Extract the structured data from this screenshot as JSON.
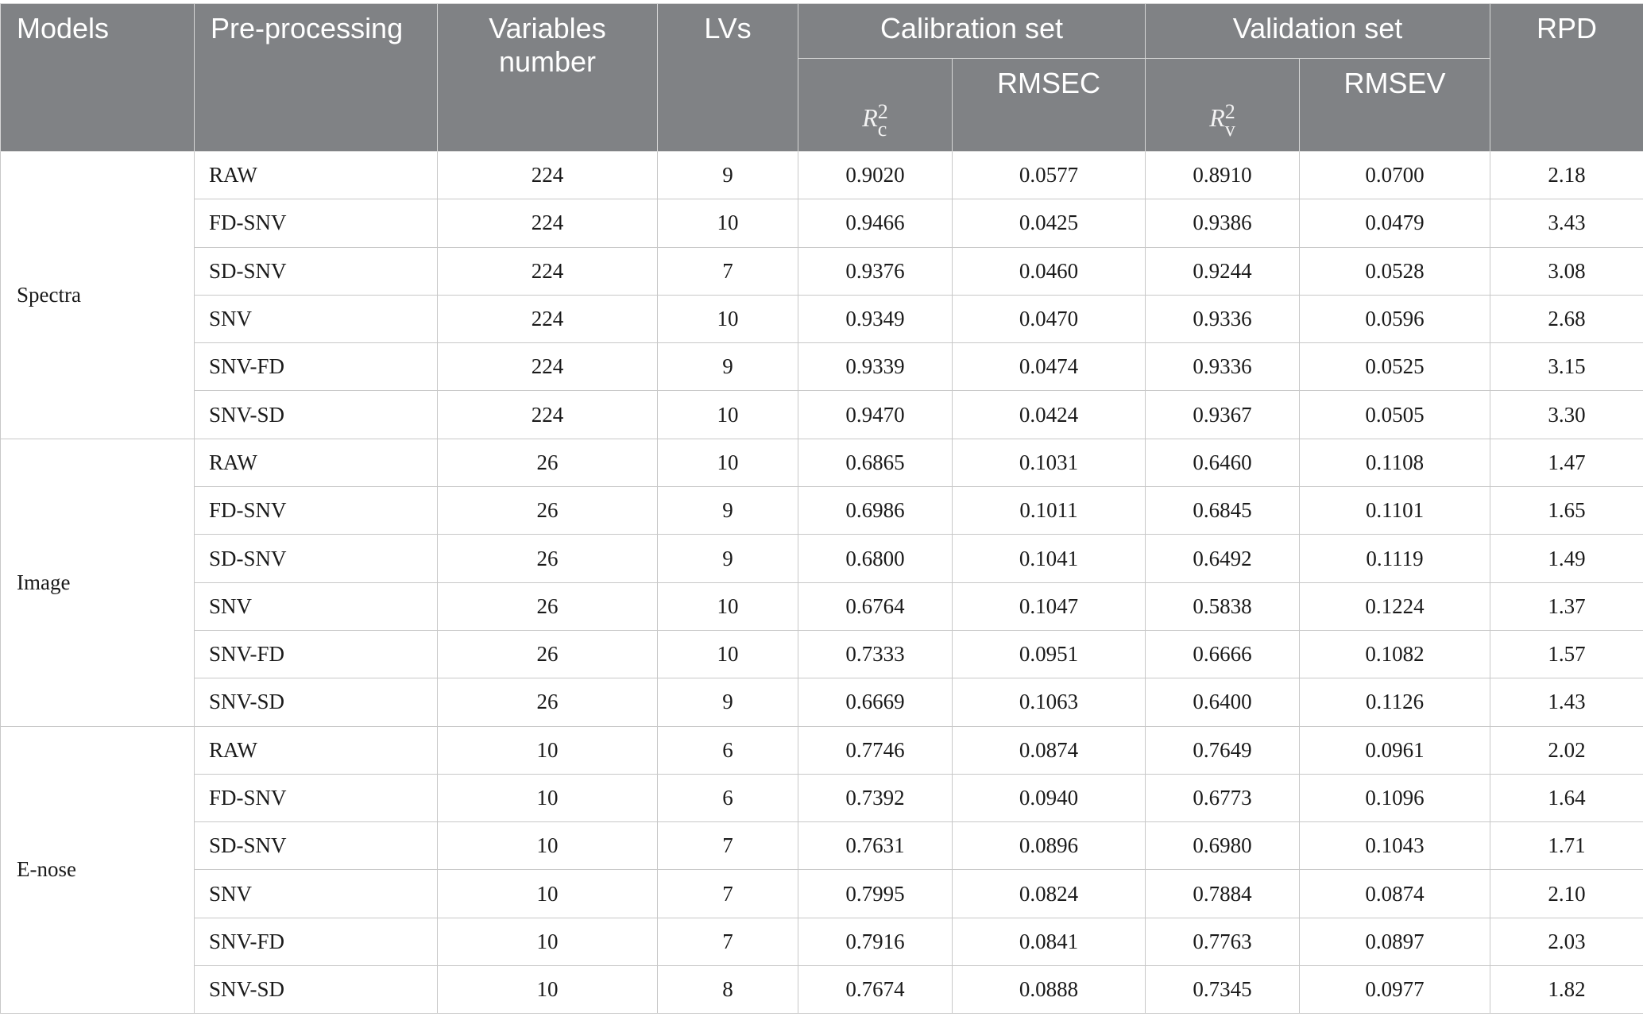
{
  "header": {
    "models": "Models",
    "preprocessing": "Pre-processing",
    "variables_number": "Variables number",
    "lvs": "LVs",
    "calibration_set": "Calibration set",
    "validation_set": "Validation set",
    "rpd": "RPD",
    "r2c_base": "R",
    "r2c_sup": "2",
    "r2c_sub": "c",
    "rmsec": "RMSEC",
    "r2v_base": "R",
    "r2v_sup": "2",
    "r2v_sub": "v",
    "rmsev": "RMSEV"
  },
  "groups": [
    {
      "model": "Spectra",
      "rows": [
        {
          "pre": "RAW",
          "vars": "224",
          "lvs": "9",
          "r2c": "0.9020",
          "rmsec": "0.0577",
          "r2v": "0.8910",
          "rmsev": "0.0700",
          "rpd": "2.18"
        },
        {
          "pre": "FD-SNV",
          "vars": "224",
          "lvs": "10",
          "r2c": "0.9466",
          "rmsec": "0.0425",
          "r2v": "0.9386",
          "rmsev": "0.0479",
          "rpd": "3.43"
        },
        {
          "pre": "SD-SNV",
          "vars": "224",
          "lvs": "7",
          "r2c": "0.9376",
          "rmsec": "0.0460",
          "r2v": "0.9244",
          "rmsev": "0.0528",
          "rpd": "3.08"
        },
        {
          "pre": "SNV",
          "vars": "224",
          "lvs": "10",
          "r2c": "0.9349",
          "rmsec": "0.0470",
          "r2v": "0.9336",
          "rmsev": "0.0596",
          "rpd": "2.68"
        },
        {
          "pre": "SNV-FD",
          "vars": "224",
          "lvs": "9",
          "r2c": "0.9339",
          "rmsec": "0.0474",
          "r2v": "0.9336",
          "rmsev": "0.0525",
          "rpd": "3.15"
        },
        {
          "pre": "SNV-SD",
          "vars": "224",
          "lvs": "10",
          "r2c": "0.9470",
          "rmsec": "0.0424",
          "r2v": "0.9367",
          "rmsev": "0.0505",
          "rpd": "3.30"
        }
      ]
    },
    {
      "model": "Image",
      "rows": [
        {
          "pre": "RAW",
          "vars": "26",
          "lvs": "10",
          "r2c": "0.6865",
          "rmsec": "0.1031",
          "r2v": "0.6460",
          "rmsev": "0.1108",
          "rpd": "1.47"
        },
        {
          "pre": "FD-SNV",
          "vars": "26",
          "lvs": "9",
          "r2c": "0.6986",
          "rmsec": "0.1011",
          "r2v": "0.6845",
          "rmsev": "0.1101",
          "rpd": "1.65"
        },
        {
          "pre": "SD-SNV",
          "vars": "26",
          "lvs": "9",
          "r2c": "0.6800",
          "rmsec": "0.1041",
          "r2v": "0.6492",
          "rmsev": "0.1119",
          "rpd": "1.49"
        },
        {
          "pre": "SNV",
          "vars": "26",
          "lvs": "10",
          "r2c": "0.6764",
          "rmsec": "0.1047",
          "r2v": "0.5838",
          "rmsev": "0.1224",
          "rpd": "1.37"
        },
        {
          "pre": "SNV-FD",
          "vars": "26",
          "lvs": "10",
          "r2c": "0.7333",
          "rmsec": "0.0951",
          "r2v": "0.6666",
          "rmsev": "0.1082",
          "rpd": "1.57"
        },
        {
          "pre": "SNV-SD",
          "vars": "26",
          "lvs": "9",
          "r2c": "0.6669",
          "rmsec": "0.1063",
          "r2v": "0.6400",
          "rmsev": "0.1126",
          "rpd": "1.43"
        }
      ]
    },
    {
      "model": "E-nose",
      "rows": [
        {
          "pre": "RAW",
          "vars": "10",
          "lvs": "6",
          "r2c": "0.7746",
          "rmsec": "0.0874",
          "r2v": "0.7649",
          "rmsev": "0.0961",
          "rpd": "2.02"
        },
        {
          "pre": "FD-SNV",
          "vars": "10",
          "lvs": "6",
          "r2c": "0.7392",
          "rmsec": "0.0940",
          "r2v": "0.6773",
          "rmsev": "0.1096",
          "rpd": "1.64"
        },
        {
          "pre": "SD-SNV",
          "vars": "10",
          "lvs": "7",
          "r2c": "0.7631",
          "rmsec": "0.0896",
          "r2v": "0.6980",
          "rmsev": "0.1043",
          "rpd": "1.71"
        },
        {
          "pre": "SNV",
          "vars": "10",
          "lvs": "7",
          "r2c": "0.7995",
          "rmsec": "0.0824",
          "r2v": "0.7884",
          "rmsev": "0.0874",
          "rpd": "2.10"
        },
        {
          "pre": "SNV-FD",
          "vars": "10",
          "lvs": "7",
          "r2c": "0.7916",
          "rmsec": "0.0841",
          "r2v": "0.7763",
          "rmsev": "0.0897",
          "rpd": "2.03"
        },
        {
          "pre": "SNV-SD",
          "vars": "10",
          "lvs": "8",
          "r2c": "0.7674",
          "rmsec": "0.0888",
          "r2v": "0.7345",
          "rmsev": "0.0977",
          "rpd": "1.82"
        }
      ]
    }
  ]
}
